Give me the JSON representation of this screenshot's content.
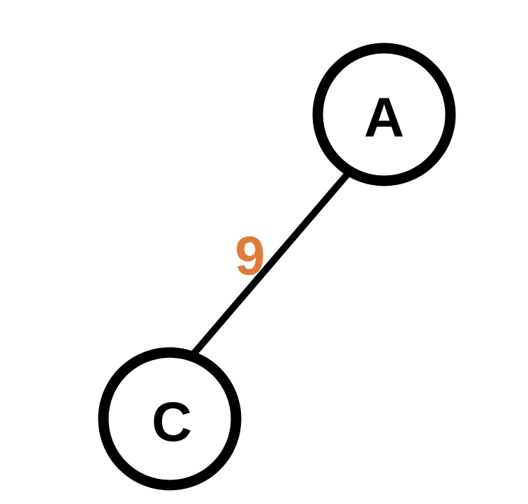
{
  "graph": {
    "nodes": [
      {
        "id": "A",
        "label": "A"
      },
      {
        "id": "C",
        "label": "C"
      }
    ],
    "edges": [
      {
        "from": "A",
        "to": "C",
        "weight": "9"
      }
    ]
  },
  "colors": {
    "node_stroke": "#000000",
    "node_fill": "#ffffff",
    "edge": "#000000",
    "weight_label": "#e07b39",
    "background": "#ffffff"
  }
}
